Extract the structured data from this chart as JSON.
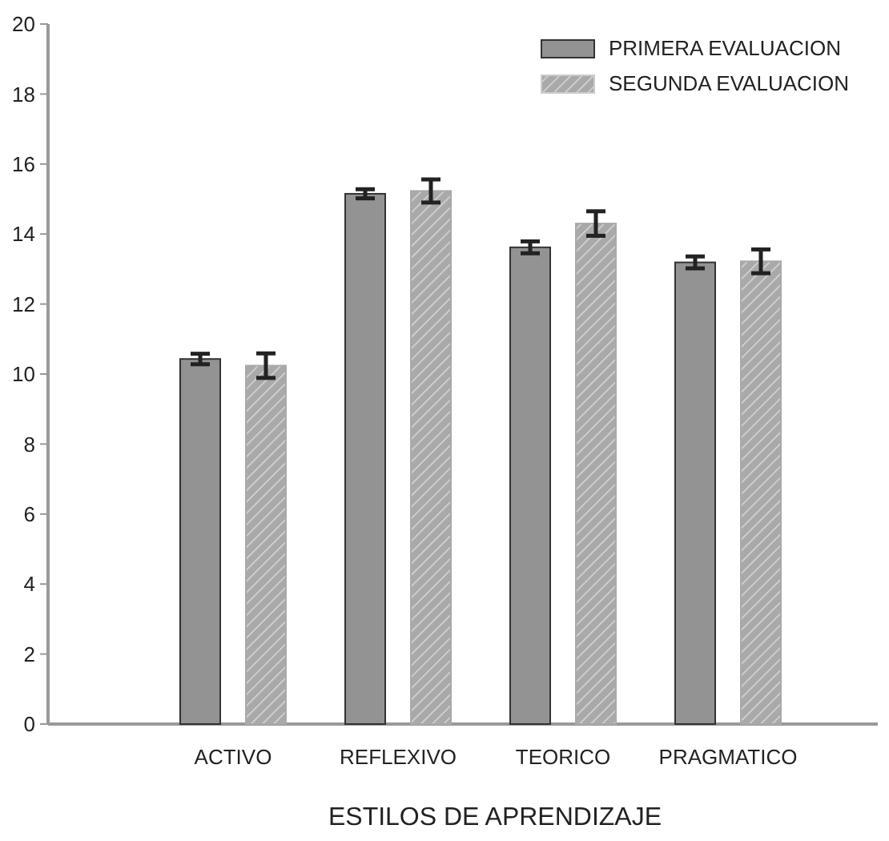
{
  "chart_data": {
    "type": "bar",
    "xlabel": "ESTILOS DE APRENDIZAJE",
    "categories": [
      "ACTIVO",
      "REFLEXIVO",
      "TEORICO",
      "PRAGMATICO"
    ],
    "series": [
      {
        "name": "PRIMERA EVALUACION",
        "color": "#939393",
        "values": [
          10.43,
          15.15,
          13.62,
          13.19
        ],
        "errors": [
          0.15,
          0.13,
          0.17,
          0.17
        ]
      },
      {
        "name": "SEGUNDA EVALUACION",
        "color": "#a9a9a9",
        "values": [
          10.24,
          15.23,
          14.3,
          13.22
        ],
        "errors": [
          0.35,
          0.33,
          0.35,
          0.34
        ]
      }
    ],
    "ylim": [
      0,
      20
    ],
    "yticks": [
      0,
      2,
      4,
      6,
      8,
      10,
      12,
      14,
      16,
      18,
      20
    ],
    "legend": "top right"
  }
}
